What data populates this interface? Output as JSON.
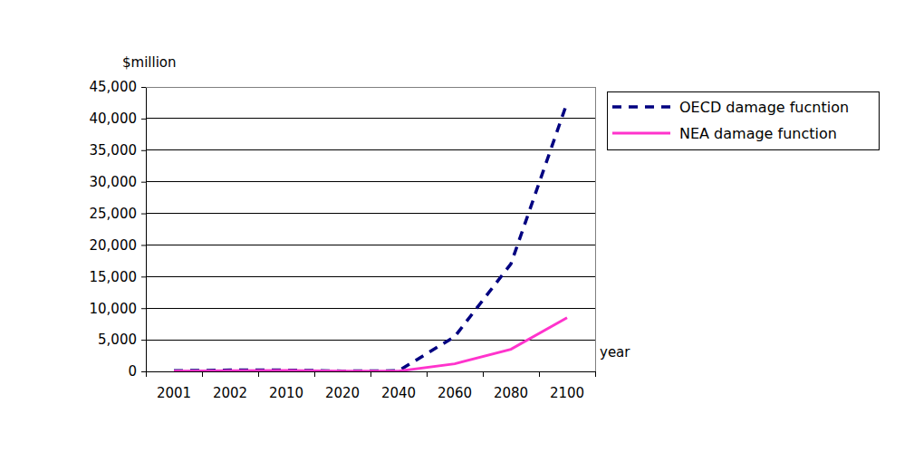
{
  "chart_data": {
    "type": "line",
    "x_label": "year",
    "y_label": "$million",
    "categories": [
      "2001",
      "2002",
      "2010",
      "2020",
      "2040",
      "2060",
      "2080",
      "2100"
    ],
    "series": [
      {
        "name": "OECD damage fucntion",
        "color": "#000080",
        "line_style": "dashed",
        "values": [
          100,
          200,
          200,
          50,
          100,
          5500,
          17000,
          42500
        ]
      },
      {
        "name": "NEA damage function",
        "color": "#ff33cc",
        "line_style": "solid",
        "values": [
          50,
          100,
          150,
          50,
          50,
          1200,
          3500,
          8500
        ]
      }
    ],
    "ylim": [
      0,
      45000
    ],
    "yticks": [
      0,
      {
        "value": 5000,
        "label": "5,000"
      },
      {
        "value": 10000,
        "label": "10,000"
      },
      {
        "value": 15000,
        "label": "15,000"
      },
      {
        "value": 20000,
        "label": "20,000"
      },
      {
        "value": 25000,
        "label": "25,000"
      },
      {
        "value": 30000,
        "label": "30,000"
      },
      {
        "value": 35000,
        "label": "35,000"
      },
      {
        "value": 40000,
        "label": "40,000"
      },
      {
        "value": 45000,
        "label": "45,000"
      }
    ],
    "grid": true,
    "legend": "right"
  }
}
